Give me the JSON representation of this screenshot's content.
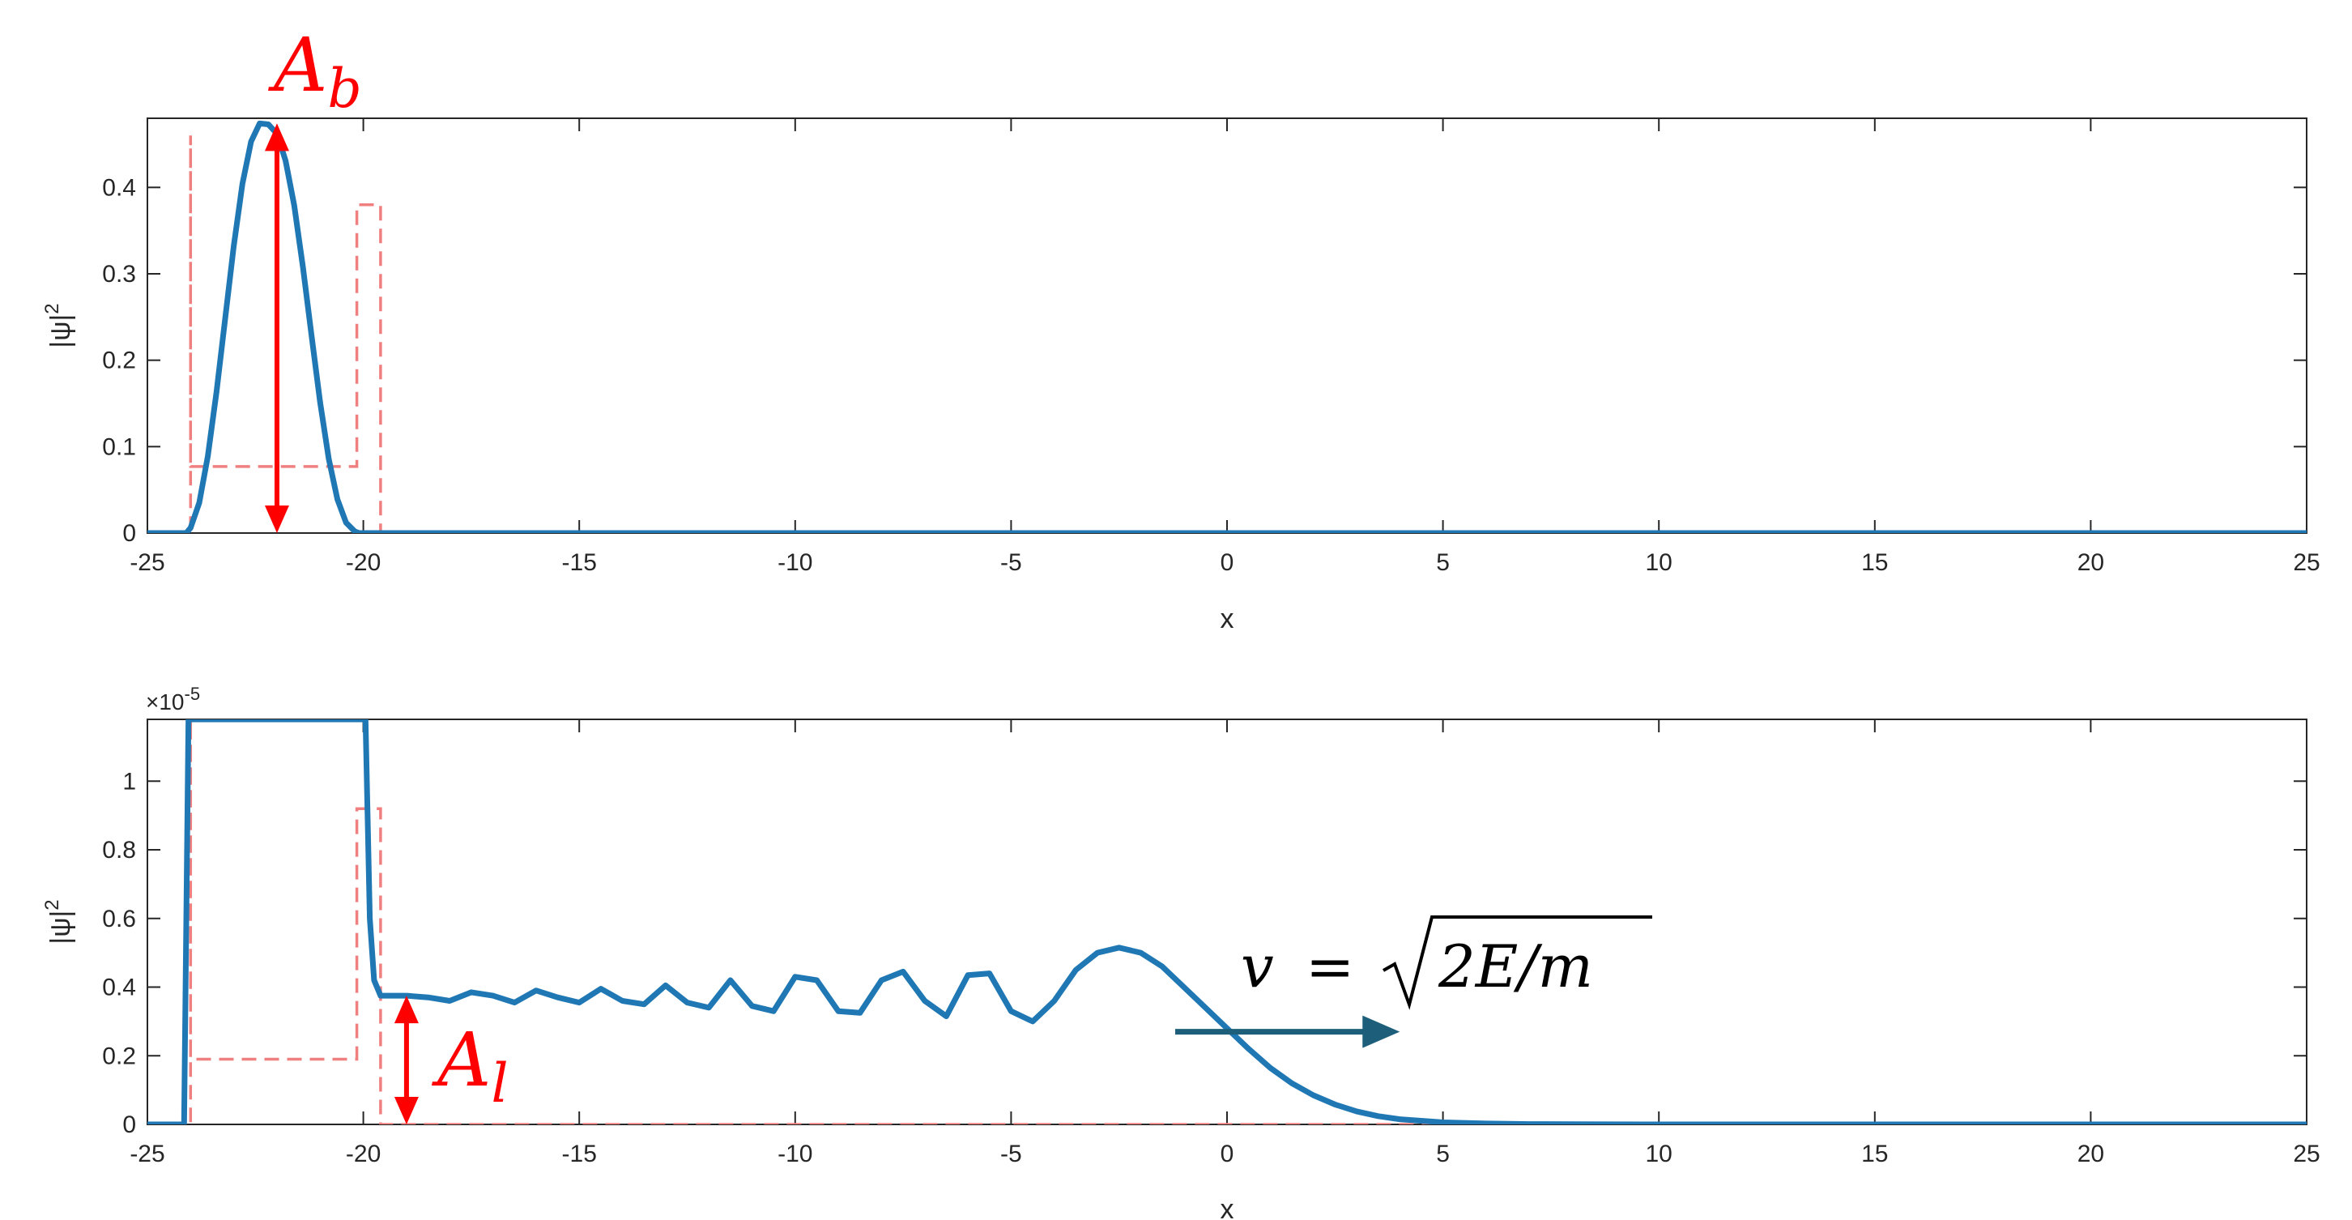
{
  "chart_data": [
    {
      "type": "line",
      "xlabel": "x",
      "ylabel": "|ψ|",
      "ylabel_superscript": "2",
      "xlim": [
        -25,
        25
      ],
      "ylim": [
        0,
        0.48
      ],
      "xticks": [
        "-25",
        "-20",
        "-15",
        "-10",
        "-5",
        "0",
        "5",
        "10",
        "15",
        "20",
        "25"
      ],
      "yticks": [
        "0",
        "0.1",
        "0.2",
        "0.3",
        "0.4"
      ],
      "ytick_values": [
        0,
        0.1,
        0.2,
        0.3,
        0.4
      ],
      "series": [
        {
          "style": "solid",
          "color": "#1f77b4",
          "x": [
            -25,
            -24.1,
            -24.0,
            -23.8,
            -23.6,
            -23.4,
            -23.2,
            -23.0,
            -22.8,
            -22.6,
            -22.4,
            -22.2,
            -22.0,
            -21.8,
            -21.6,
            -21.4,
            -21.2,
            -21.0,
            -20.8,
            -20.6,
            -20.4,
            -20.2,
            -20.1,
            -20.0,
            25
          ],
          "y": [
            0,
            0,
            0.006,
            0.035,
            0.089,
            0.163,
            0.248,
            0.332,
            0.404,
            0.453,
            0.474,
            0.473,
            0.462,
            0.431,
            0.379,
            0.308,
            0.229,
            0.151,
            0.086,
            0.039,
            0.012,
            0.002,
            0,
            0,
            0
          ]
        },
        {
          "style": "dashed",
          "color": "#f08080",
          "x": [
            -25,
            -24.0,
            -24.0,
            -24.0,
            -20.15,
            -20.15,
            -19.6,
            -19.6,
            -19.6,
            25
          ],
          "y": [
            0,
            0,
            0.46,
            0.077,
            0.077,
            0.38,
            0.38,
            0.38,
            0,
            0
          ]
        }
      ],
      "annotations": [
        {
          "label": "A",
          "subscript": "b",
          "type": "double-arrow",
          "x": -22,
          "y_from": 0,
          "y_to": 0.474,
          "color": "#ff0000"
        }
      ]
    },
    {
      "type": "line",
      "xlabel": "x",
      "ylabel": "|ψ|",
      "ylabel_superscript": "2",
      "exponent_base": "×10",
      "exponent_power": "-5",
      "xlim": [
        -25,
        25
      ],
      "ylim": [
        0,
        1.18
      ],
      "xticks": [
        "-25",
        "-20",
        "-15",
        "-10",
        "-5",
        "0",
        "5",
        "10",
        "15",
        "20",
        "25"
      ],
      "yticks": [
        "0",
        "0.2",
        "0.4",
        "0.6",
        "0.8",
        "1"
      ],
      "ytick_values": [
        0,
        0.2,
        0.4,
        0.6,
        0.8,
        1
      ],
      "series": [
        {
          "style": "solid",
          "color": "#1f77b4",
          "x": [
            -25,
            -24.15,
            -24.05,
            -24.0,
            -19.95,
            -19.85,
            -19.75,
            -19.6,
            -19.0,
            -18.5,
            -18.0,
            -17.5,
            -17.0,
            -16.5,
            -16.0,
            -15.5,
            -15.0,
            -14.5,
            -14.0,
            -13.5,
            -13.0,
            -12.5,
            -12.0,
            -11.5,
            -11.0,
            -10.5,
            -10.0,
            -9.5,
            -9.0,
            -8.5,
            -8.0,
            -7.5,
            -7.0,
            -6.5,
            -6.0,
            -5.5,
            -5.0,
            -4.5,
            -4.0,
            -3.5,
            -3.0,
            -2.5,
            -2.0,
            -1.5,
            -1.0,
            -0.5,
            0.0,
            0.5,
            1.0,
            1.5,
            2.0,
            2.5,
            3.0,
            3.5,
            4.0,
            5.0,
            6.0,
            7.0,
            8.0,
            10.0,
            12.0,
            25
          ],
          "y": [
            0,
            0,
            1.18,
            1.18,
            1.18,
            0.6,
            0.42,
            0.375,
            0.375,
            0.37,
            0.36,
            0.385,
            0.375,
            0.355,
            0.39,
            0.37,
            0.355,
            0.395,
            0.36,
            0.35,
            0.405,
            0.355,
            0.34,
            0.42,
            0.345,
            0.33,
            0.43,
            0.42,
            0.33,
            0.325,
            0.42,
            0.445,
            0.36,
            0.315,
            0.435,
            0.44,
            0.33,
            0.3,
            0.36,
            0.45,
            0.5,
            0.515,
            0.5,
            0.46,
            0.4,
            0.34,
            0.28,
            0.22,
            0.165,
            0.12,
            0.085,
            0.058,
            0.038,
            0.024,
            0.015,
            0.006,
            0.0025,
            0.001,
            0.0005,
            0.0001,
            0,
            0
          ]
        },
        {
          "style": "dashed",
          "color": "#f08080",
          "x": [
            -25,
            -24.0,
            -24.0,
            -24.0,
            -20.15,
            -20.15,
            -19.6,
            -19.6,
            25
          ],
          "y": [
            0,
            0,
            1.18,
            0.19,
            0.19,
            0.92,
            0.92,
            0,
            0
          ]
        }
      ],
      "annotations": [
        {
          "label": "A",
          "subscript": "l",
          "type": "double-arrow",
          "x": -19,
          "y_from": 0,
          "y_to": 0.375,
          "color": "#ff0000"
        },
        {
          "type": "arrow",
          "x_from": -1.2,
          "x_to": 4.0,
          "y": 0.27,
          "color": "#1d5f7a",
          "label_lhs": "v",
          "label_eq": "=",
          "label_rad": "2E/m"
        }
      ]
    }
  ]
}
